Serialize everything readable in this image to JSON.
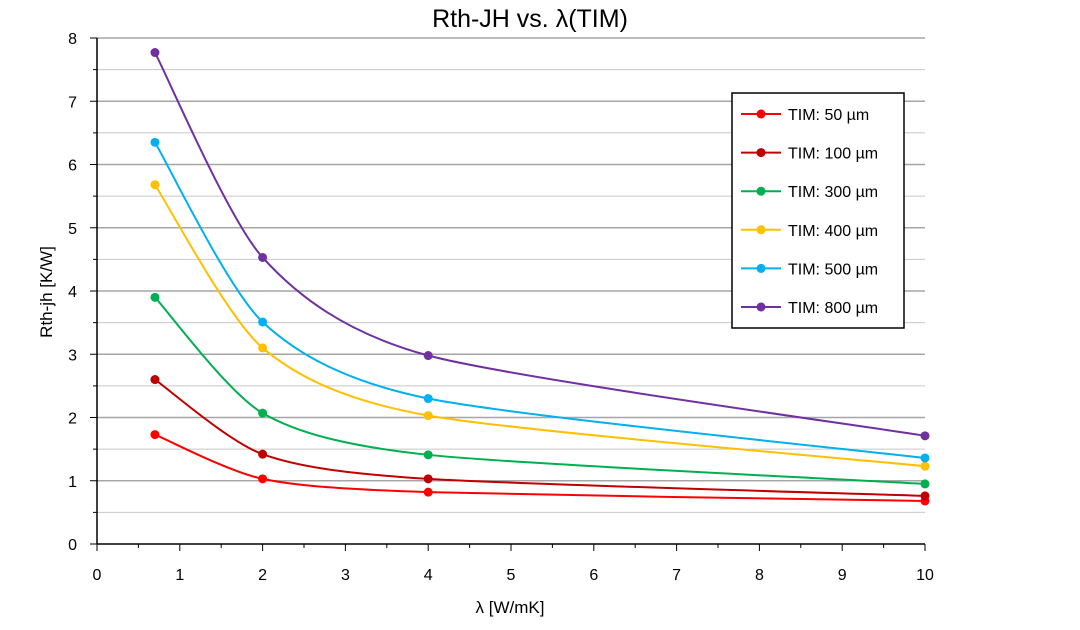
{
  "chart_data": {
    "type": "line",
    "title": "Rth-JH vs. λ(TIM)",
    "xlabel": "λ [W/mK]",
    "ylabel": "Rth-jh [K/W]",
    "xlim": [
      0,
      10
    ],
    "ylim": [
      0,
      8
    ],
    "xticks": [
      "0",
      "1",
      "2",
      "3",
      "4",
      "5",
      "6",
      "7",
      "8",
      "9",
      "10"
    ],
    "yticks": [
      "0",
      "1",
      "2",
      "3",
      "4",
      "5",
      "6",
      "7",
      "8"
    ],
    "grid": "horizontal, major and minor",
    "legend_position": "top-right",
    "x": [
      0.7,
      2,
      4,
      10
    ],
    "series": [
      {
        "name": "TIM: 50 µm",
        "color": "#ff0000",
        "values": [
          1.73,
          1.03,
          0.82,
          0.68
        ]
      },
      {
        "name": "TIM: 100 µm",
        "color": "#c00000",
        "values": [
          2.6,
          1.42,
          1.03,
          0.76
        ]
      },
      {
        "name": "TIM: 300 µm",
        "color": "#00b050",
        "values": [
          3.9,
          2.07,
          1.41,
          0.95
        ]
      },
      {
        "name": "TIM: 400 µm",
        "color": "#ffc000",
        "values": [
          5.68,
          3.1,
          2.03,
          1.23
        ]
      },
      {
        "name": "TIM: 500 µm",
        "color": "#00b0f0",
        "values": [
          6.35,
          3.51,
          2.3,
          1.36
        ]
      },
      {
        "name": "TIM: 800 µm",
        "color": "#7030a0",
        "values": [
          7.77,
          4.53,
          2.98,
          1.71
        ]
      }
    ]
  }
}
